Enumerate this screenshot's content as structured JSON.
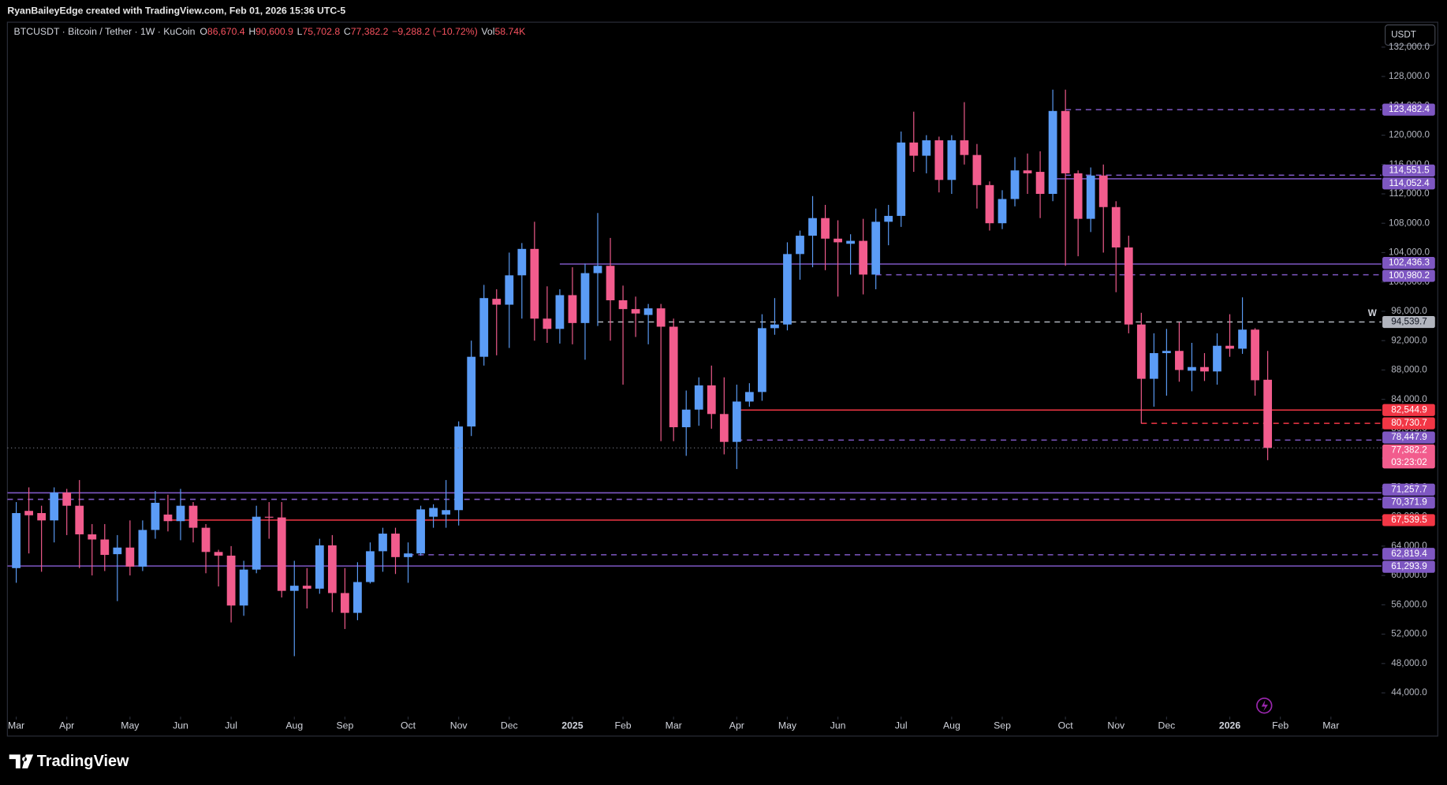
{
  "header": {
    "credit": "RyanBaileyEdge created with TradingView.com, Feb 01, 2026 15:36 UTC-5"
  },
  "footer": {
    "brand": "TradingView"
  },
  "chart_data": {
    "type": "candlestick",
    "symbol": "BTCUSDT · Bitcoin / Tether · 1W · KuCoin",
    "legend_values": [
      {
        "key": "O",
        "text": "86,670.4"
      },
      {
        "key": "H",
        "text": "90,600.9"
      },
      {
        "key": "L",
        "text": "75,702.8"
      },
      {
        "key": "C",
        "text": "77,382.2"
      },
      {
        "key": "−9,288.2",
        "text": "(−10.72%)"
      },
      {
        "key": "Vol",
        "text": "58.74K"
      }
    ],
    "currency": "USDT",
    "interval_marker": "W",
    "countdown": "03:23:02",
    "up_color": "#5b9cf6",
    "down_color": "#f25c8d",
    "grid": false,
    "xlim": [
      -0.7,
      108
    ],
    "ylim": [
      41000,
      135400
    ],
    "xticks": [
      {
        "value": 0,
        "label": "Mar"
      },
      {
        "value": 4,
        "label": "Apr"
      },
      {
        "value": 9,
        "label": "May"
      },
      {
        "value": 13,
        "label": "Jun"
      },
      {
        "value": 17,
        "label": "Jul"
      },
      {
        "value": 22,
        "label": "Aug"
      },
      {
        "value": 26,
        "label": "Sep"
      },
      {
        "value": 31,
        "label": "Oct"
      },
      {
        "value": 35,
        "label": "Nov"
      },
      {
        "value": 39,
        "label": "Dec"
      },
      {
        "value": 44,
        "label": "2025"
      },
      {
        "value": 48,
        "label": "Feb"
      },
      {
        "value": 52,
        "label": "Mar"
      },
      {
        "value": 57,
        "label": "Apr"
      },
      {
        "value": 61,
        "label": "May"
      },
      {
        "value": 65,
        "label": "Jun"
      },
      {
        "value": 70,
        "label": "Jul"
      },
      {
        "value": 74,
        "label": "Aug"
      },
      {
        "value": 78,
        "label": "Sep"
      },
      {
        "value": 83,
        "label": "Oct"
      },
      {
        "value": 87,
        "label": "Nov"
      },
      {
        "value": 91,
        "label": "Dec"
      },
      {
        "value": 96,
        "label": "2026"
      },
      {
        "value": 100,
        "label": "Feb"
      },
      {
        "value": 104,
        "label": "Mar"
      }
    ],
    "yticks": [
      {
        "value": 44000,
        "label": "44,000.0"
      },
      {
        "value": 48000,
        "label": "48,000.0"
      },
      {
        "value": 52000,
        "label": "52,000.0"
      },
      {
        "value": 56000,
        "label": "56,000.0"
      },
      {
        "value": 60000,
        "label": "60,000.0"
      },
      {
        "value": 64000,
        "label": "64,000.0"
      },
      {
        "value": 68000,
        "label": "68,000.0"
      },
      {
        "value": 72000,
        "label": "72,000.0"
      },
      {
        "value": 76000,
        "label": "76,000.0"
      },
      {
        "value": 80000,
        "label": "80,000.0"
      },
      {
        "value": 84000,
        "label": "84,000.0"
      },
      {
        "value": 88000,
        "label": "88,000.0"
      },
      {
        "value": 92000,
        "label": "92,000.0"
      },
      {
        "value": 96000,
        "label": "96,000.0"
      },
      {
        "value": 100000,
        "label": "100,000.0"
      },
      {
        "value": 104000,
        "label": "104,000.0"
      },
      {
        "value": 108000,
        "label": "108,000.0"
      },
      {
        "value": 112000,
        "label": "112,000.0"
      },
      {
        "value": 116000,
        "label": "116,000.0"
      },
      {
        "value": 120000,
        "label": "120,000.0"
      },
      {
        "value": 124000,
        "label": "124,000.0"
      },
      {
        "value": 128000,
        "label": "128,000.0"
      },
      {
        "value": 132000,
        "label": "132,000.0"
      }
    ],
    "levels": [
      {
        "value": 123482.4,
        "label": "123,482.4",
        "color": "#7e57c2",
        "style": "dashed"
      },
      {
        "value": 114551.5,
        "label": "114,551.5",
        "color": "#7e57c2",
        "style": "dashed"
      },
      {
        "value": 114052.4,
        "label": "114,052.4",
        "color": "#7e57c2",
        "style": "solid"
      },
      {
        "value": 102436.3,
        "label": "102,436.3",
        "color": "#7e57c2",
        "style": "solid"
      },
      {
        "value": 100980.2,
        "label": "100,980.2",
        "color": "#7e57c2",
        "style": "dashed"
      },
      {
        "value": 94539.7,
        "label": "94,539.7",
        "color": "#b2b5be",
        "style": "dashed"
      },
      {
        "value": 82544.9,
        "label": "82,544.9",
        "color": "#f23645",
        "style": "solid"
      },
      {
        "value": 80730.7,
        "label": "80,730.7",
        "color": "#f23645",
        "style": "dashed"
      },
      {
        "value": 78447.9,
        "label": "78,447.9",
        "color": "#7e57c2",
        "style": "dashed"
      },
      {
        "value": 71257.7,
        "label": "71,257.7",
        "color": "#7e57c2",
        "style": "solid"
      },
      {
        "value": 70371.9,
        "label": "70,371.9",
        "color": "#7e57c2",
        "style": "dashed"
      },
      {
        "value": 67539.5,
        "label": "67,539.5",
        "color": "#f23645",
        "style": "solid"
      },
      {
        "value": 62819.4,
        "label": "62,819.4",
        "color": "#7e57c2",
        "style": "dashed"
      },
      {
        "value": 61293.9,
        "label": "61,293.9",
        "color": "#7e57c2",
        "style": "solid"
      }
    ],
    "last_price": {
      "value": 77382.2,
      "label": "77,382.2"
    },
    "open": [
      61000,
      68800,
      68500,
      67500,
      71300,
      69500,
      65600,
      64900,
      62900,
      63800,
      61200,
      66200,
      68300,
      67400,
      69500,
      66500,
      63200,
      62700,
      55900,
      60800,
      68000,
      67900,
      57900,
      58600,
      58200,
      64100,
      57600,
      54900,
      59100,
      63300,
      65700,
      62500,
      63000,
      68000,
      68300,
      68900,
      80300,
      89800,
      97700,
      96900,
      100900,
      104500,
      95000,
      93600,
      98200,
      94400,
      101200,
      102200,
      97500,
      96300,
      95500,
      96400,
      93900,
      80200,
      82600,
      85900,
      82000,
      78200,
      83700,
      85000,
      93700,
      94200,
      103800,
      106300,
      108700,
      105900,
      105200,
      105600,
      101000,
      108200,
      109000,
      119000,
      117200,
      119300,
      113900,
      119300,
      117300,
      113200,
      108000,
      111300,
      115200,
      115000,
      112000,
      123300,
      114800,
      108600,
      114500,
      110200,
      104700,
      94200,
      86800,
      90300,
      90600,
      87900,
      88400,
      87800,
      91300,
      90900,
      93500,
      86670.4
    ],
    "high": [
      70000,
      72000,
      69500,
      72000,
      71800,
      73000,
      67000,
      67000,
      65500,
      67500,
      67500,
      71500,
      71000,
      71800,
      70000,
      67000,
      63500,
      64000,
      62000,
      69500,
      70000,
      70000,
      62000,
      61000,
      65000,
      65500,
      61000,
      61800,
      64500,
      66500,
      66500,
      64500,
      69500,
      69700,
      73000,
      81000,
      92000,
      99600,
      99000,
      104000,
      105300,
      108200,
      99400,
      99000,
      102000,
      102500,
      109400,
      106000,
      99500,
      98000,
      97000,
      97000,
      95000,
      85200,
      87000,
      88600,
      87000,
      86000,
      86200,
      95600,
      97800,
      105400,
      107000,
      111700,
      110500,
      108400,
      106500,
      108600,
      110000,
      110500,
      120500,
      123200,
      120000,
      119800,
      120000,
      124500,
      118800,
      113700,
      112500,
      117000,
      117500,
      117800,
      126200,
      126200,
      115200,
      115600,
      116000,
      111000,
      106300,
      95800,
      93000,
      93600,
      94500,
      91700,
      90300,
      93000,
      95600,
      97900,
      93700,
      90600.9
    ],
    "low": [
      59000,
      63000,
      60500,
      64500,
      65500,
      61000,
      60000,
      60600,
      56500,
      60000,
      60600,
      65000,
      66000,
      64800,
      64500,
      60300,
      58500,
      53600,
      54500,
      60300,
      65000,
      57000,
      49000,
      55500,
      57500,
      55000,
      52700,
      53900,
      58900,
      60500,
      60200,
      59000,
      62700,
      66500,
      66500,
      66800,
      79000,
      88600,
      90000,
      91000,
      95000,
      92000,
      91700,
      91600,
      91500,
      89400,
      94000,
      92000,
      86000,
      92500,
      91500,
      78300,
      78300,
      76300,
      80400,
      80000,
      76500,
      74500,
      83000,
      83800,
      92800,
      93400,
      100300,
      102000,
      101600,
      98000,
      101000,
      98300,
      99000,
      105000,
      107500,
      115000,
      114800,
      112200,
      112000,
      116000,
      110000,
      107000,
      107200,
      110300,
      112000,
      108700,
      111000,
      102200,
      103500,
      106800,
      104000,
      98600,
      93000,
      80700,
      83000,
      84500,
      86400,
      85100,
      86500,
      86000,
      89800,
      90200,
      84500,
      75702.8
    ],
    "close": [
      68500,
      68200,
      67500,
      71300,
      69500,
      65600,
      64900,
      62800,
      63800,
      61200,
      66200,
      69900,
      67400,
      69500,
      66500,
      63200,
      62700,
      55900,
      60800,
      68000,
      67900,
      57900,
      58600,
      58200,
      64100,
      57600,
      54900,
      59100,
      63300,
      65700,
      62500,
      63000,
      69000,
      69200,
      68900,
      80300,
      89800,
      97800,
      96900,
      100900,
      104500,
      95000,
      93600,
      98200,
      94400,
      101200,
      102200,
      97500,
      96300,
      95700,
      96400,
      93900,
      80200,
      82600,
      85900,
      82000,
      78200,
      83700,
      85000,
      93700,
      94200,
      103800,
      106300,
      108700,
      105900,
      105400,
      105600,
      101000,
      108200,
      109000,
      119000,
      117200,
      119300,
      113900,
      119300,
      117300,
      113200,
      108000,
      111300,
      115200,
      114800,
      112000,
      123300,
      114800,
      108600,
      114500,
      110200,
      104700,
      94200,
      86800,
      90300,
      90600,
      88000,
      88400,
      87800,
      91300,
      90900,
      93500,
      86600,
      77382.2
    ]
  }
}
